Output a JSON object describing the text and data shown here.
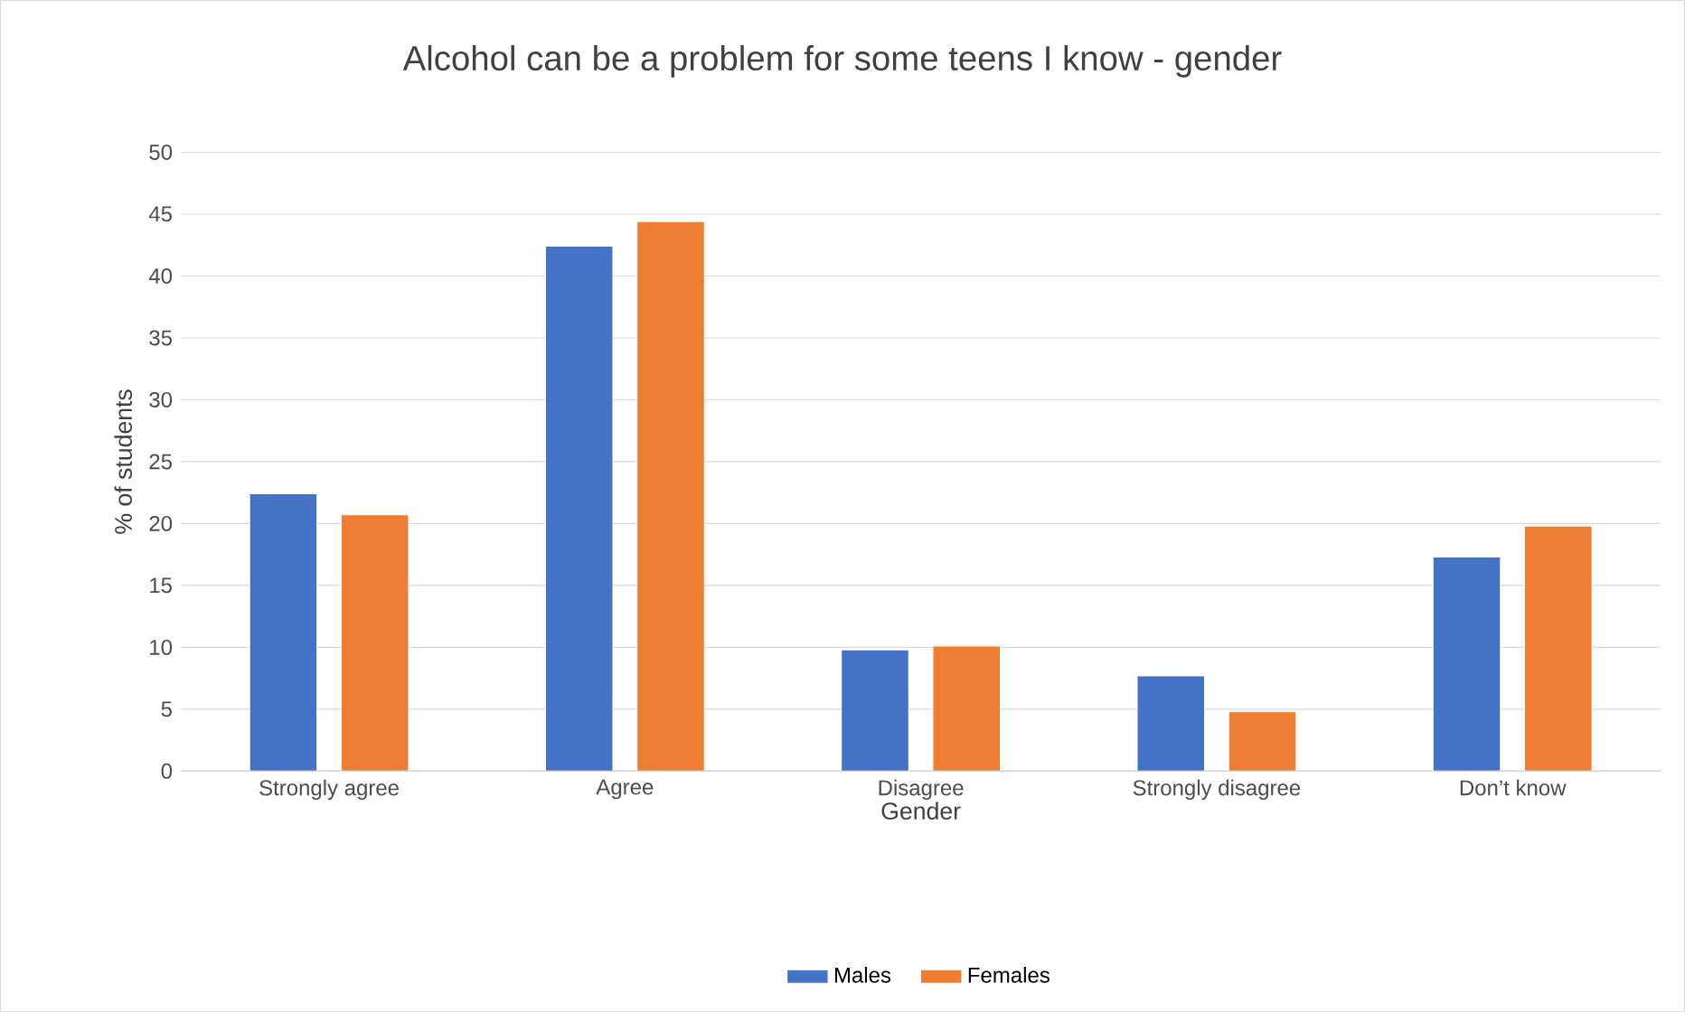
{
  "chart_data": {
    "type": "bar",
    "title": "Alcohol can be a problem for some teens I know - gender",
    "xlabel": "Gender",
    "ylabel": "% of students",
    "categories": [
      "Strongly agree",
      "Agree",
      "Disagree",
      "Strongly disagree",
      "Don’t know"
    ],
    "series": [
      {
        "name": "Males",
        "color": "#4472c4",
        "values": [
          22.4,
          42.4,
          9.8,
          7.7,
          17.3
        ]
      },
      {
        "name": "Females",
        "color": "#ed7d31",
        "values": [
          20.7,
          44.4,
          10.1,
          4.8,
          19.8
        ]
      }
    ],
    "ylim": [
      0,
      50
    ],
    "yticks": [
      0,
      5,
      10,
      15,
      20,
      25,
      30,
      35,
      40,
      45,
      50
    ],
    "grid": "y",
    "legend": "bottom"
  }
}
